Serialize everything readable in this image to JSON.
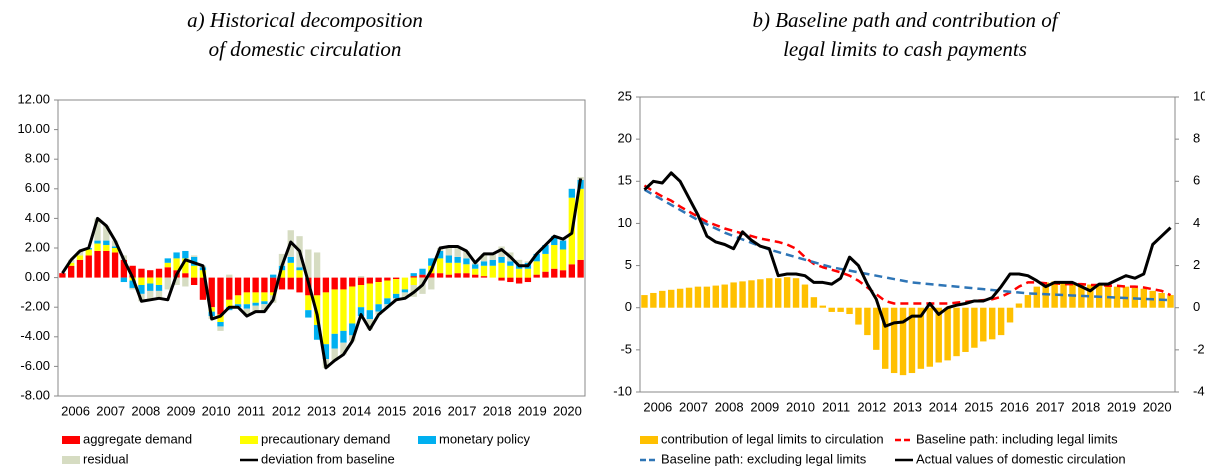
{
  "chart_data": [
    {
      "type": "bar",
      "stacked": true,
      "title": [
        "a)    Historical decomposition",
        "of domestic circulation"
      ],
      "categories": [
        "2006",
        null,
        null,
        null,
        "2007",
        null,
        null,
        null,
        "2008",
        null,
        null,
        null,
        "2009",
        null,
        null,
        null,
        "2010",
        null,
        null,
        null,
        "2011",
        null,
        null,
        null,
        "2012",
        null,
        null,
        null,
        "2013",
        null,
        null,
        null,
        "2014",
        null,
        null,
        null,
        "2015",
        null,
        null,
        null,
        "2016",
        null,
        null,
        null,
        "2017",
        null,
        null,
        null,
        "2018",
        null,
        null,
        null,
        "2019",
        null,
        null,
        null,
        "2020",
        null,
        null,
        null
      ],
      "ylim": [
        -8,
        12
      ],
      "yticks": [
        {
          "value": -8,
          "label": "-8.00"
        },
        {
          "value": -6,
          "label": "-6.00"
        },
        {
          "value": -4,
          "label": "-4.00"
        },
        {
          "value": -2,
          "label": "-2.00"
        },
        {
          "value": 0,
          "label": "0.00"
        },
        {
          "value": 2,
          "label": "2.00"
        },
        {
          "value": 4,
          "label": "4.00"
        },
        {
          "value": 6,
          "label": "6.00"
        },
        {
          "value": 8,
          "label": "8.00"
        },
        {
          "value": 10,
          "label": "10.00"
        },
        {
          "value": 12,
          "label": "12.00"
        }
      ],
      "series": [
        {
          "name": "aggregate demand",
          "color": "#ff0000",
          "values": [
            0.3,
            0.8,
            1.2,
            1.5,
            1.8,
            1.8,
            1.7,
            1.2,
            0.8,
            0.6,
            0.5,
            0.6,
            0.7,
            0.5,
            0.3,
            -0.5,
            -1.5,
            -2.0,
            -2.5,
            -1.5,
            -1.2,
            -1.0,
            -1.0,
            -1.0,
            -1.0,
            -0.8,
            -0.8,
            -1.0,
            -1.2,
            -1.2,
            -1.0,
            -0.8,
            -0.8,
            -0.6,
            -0.5,
            -0.4,
            -0.3,
            -0.2,
            -0.1,
            0.0,
            0.1,
            0.2,
            0.3,
            0.3,
            0.2,
            0.3,
            0.3,
            0.2,
            0.1,
            0.0,
            -0.2,
            -0.3,
            -0.4,
            -0.3,
            0.2,
            0.4,
            0.6,
            0.5,
            0.9,
            1.2
          ]
        },
        {
          "name": "precautionary demand",
          "color": "#ffff00",
          "values": [
            0,
            0.2,
            0.3,
            0.4,
            0.5,
            0.4,
            0.3,
            0,
            -0.2,
            -0.5,
            -0.4,
            -0.5,
            0.3,
            0.8,
            1.0,
            0.8,
            0.5,
            -0.3,
            -0.5,
            -0.5,
            -0.6,
            -0.8,
            -0.7,
            -0.6,
            -0.2,
            0.5,
            1.0,
            0.5,
            -1.0,
            -2.0,
            -3.5,
            -3.0,
            -2.8,
            -2.5,
            -1.5,
            -1.8,
            -1.5,
            -1.2,
            -1.0,
            -0.8,
            -0.5,
            0,
            0.5,
            1.0,
            0.8,
            0.7,
            0.6,
            0.4,
            0.7,
            0.8,
            1.0,
            0.8,
            0.6,
            0.6,
            0.9,
            1.2,
            1.6,
            1.4,
            4.5,
            4.8
          ]
        },
        {
          "name": "monetary policy",
          "color": "#00b0f0",
          "values": [
            0,
            0,
            0,
            0.1,
            0.2,
            0.3,
            0.1,
            -0.3,
            -0.5,
            -0.6,
            -0.5,
            -0.4,
            0.3,
            0.4,
            0.5,
            0.6,
            0.2,
            -0.3,
            -0.3,
            -0.2,
            -0.2,
            -0.3,
            -0.2,
            -0.2,
            0.2,
            0.3,
            0.4,
            0.2,
            -0.5,
            -1.0,
            -1.0,
            -1.0,
            -0.8,
            -0.8,
            -0.6,
            -0.6,
            -0.5,
            -0.4,
            -0.3,
            -0.2,
            0.2,
            0.4,
            0.5,
            0.5,
            0.5,
            0.4,
            0.4,
            0.3,
            0.3,
            0.4,
            0.4,
            0.3,
            0.3,
            0.4,
            0.5,
            0.6,
            0.6,
            0.6,
            0.6,
            0.6
          ]
        },
        {
          "name": "residual",
          "color": "#d6dcc2",
          "values": [
            0,
            0.2,
            0.3,
            0,
            1.5,
            1.0,
            0.4,
            0.3,
            -0.1,
            -0.5,
            -0.6,
            -0.5,
            -0.8,
            -0.5,
            -0.6,
            0.1,
            0.1,
            -0.2,
            -0.3,
            0.2,
            0,
            -0.5,
            -0.4,
            -0.5,
            -0.5,
            0.8,
            1.8,
            2.1,
            1.9,
            1.7,
            -0.6,
            -0.8,
            -0.8,
            -0.4,
            0.1,
            -0.7,
            -0.2,
            -0.2,
            -0.1,
            -0.4,
            -0.8,
            -1.1,
            -0.8,
            0.2,
            0.6,
            0.7,
            0.5,
            0.1,
            0.5,
            0.4,
            0.7,
            0.6,
            0.3,
            0.1,
            0,
            0,
            0,
            0.1,
            0,
            0.2
          ]
        },
        {
          "name": "deviation from baseline",
          "type": "line",
          "color": "#000000",
          "values": [
            0.3,
            1.2,
            1.8,
            2.0,
            4.0,
            3.5,
            2.5,
            1.2,
            0.0,
            -1.6,
            -1.5,
            -1.4,
            -1.5,
            0.2,
            1.2,
            1.0,
            0.8,
            -2.8,
            -2.6,
            -2.0,
            -2.0,
            -2.6,
            -2.3,
            -2.3,
            -1.5,
            0.8,
            2.4,
            1.8,
            -0.3,
            -2.5,
            -6.1,
            -5.6,
            -5.2,
            -4.3,
            -2.5,
            -3.5,
            -2.5,
            -2.0,
            -1.5,
            -1.4,
            -1.0,
            -0.5,
            0.5,
            2.0,
            2.1,
            2.1,
            1.8,
            1.0,
            1.6,
            1.6,
            1.9,
            1.4,
            0.8,
            0.8,
            1.6,
            2.2,
            2.8,
            2.6,
            3.0,
            6.7
          ]
        }
      ]
    },
    {
      "type": "bar",
      "title": [
        "b) Baseline path and contribution of",
        "legal limits to cash payments"
      ],
      "categories": [
        "2006",
        null,
        null,
        null,
        "2007",
        null,
        null,
        null,
        "2008",
        null,
        null,
        null,
        "2009",
        null,
        null,
        null,
        "2010",
        null,
        null,
        null,
        "2011",
        null,
        null,
        null,
        "2012",
        null,
        null,
        null,
        "2013",
        null,
        null,
        null,
        "2014",
        null,
        null,
        null,
        "2015",
        null,
        null,
        null,
        "2016",
        null,
        null,
        null,
        "2017",
        null,
        null,
        null,
        "2018",
        null,
        null,
        null,
        "2019",
        null,
        null,
        null,
        "2020",
        null,
        null,
        null
      ],
      "ylim": [
        -10,
        25
      ],
      "yticks": [
        -10,
        -5,
        0,
        5,
        10,
        15,
        20,
        25
      ],
      "y2lim": [
        -4,
        10
      ],
      "y2ticks": [
        -4,
        -2,
        0,
        2,
        4,
        6,
        8,
        10
      ],
      "series": [
        {
          "name": "contribution of legal limits to circulation",
          "color": "#ffc000",
          "axis": "y2",
          "values": [
            0.6,
            0.7,
            0.8,
            0.85,
            0.9,
            0.95,
            1.0,
            1.0,
            1.05,
            1.1,
            1.2,
            1.25,
            1.3,
            1.35,
            1.4,
            1.4,
            1.45,
            1.4,
            1.1,
            0.5,
            0.1,
            -0.2,
            -0.2,
            -0.3,
            -0.8,
            -1.3,
            -2.0,
            -2.9,
            -3.1,
            -3.2,
            -3.1,
            -2.9,
            -2.8,
            -2.6,
            -2.5,
            -2.3,
            -2.1,
            -1.9,
            -1.6,
            -1.5,
            -1.3,
            -0.7,
            0.2,
            0.6,
            1.0,
            1.2,
            1.25,
            1.2,
            1.2,
            1.15,
            1.1,
            1.1,
            1.05,
            1.0,
            1.0,
            0.95,
            0.9,
            0.8,
            0.7,
            0.6
          ]
        },
        {
          "name": "Baseline path: including legal limits",
          "type": "line",
          "dash": true,
          "color": "#ff0000",
          "values": [
            14.5,
            13.8,
            13.2,
            12.7,
            12.0,
            11.4,
            10.8,
            10.2,
            9.8,
            9.4,
            9.1,
            8.8,
            8.5,
            8.2,
            8.0,
            7.8,
            7.5,
            7.0,
            6.0,
            5.2,
            4.8,
            4.5,
            4.2,
            3.8,
            3.2,
            2.4,
            1.6,
            0.8,
            0.5,
            0.5,
            0.5,
            0.5,
            0.5,
            0.5,
            0.5,
            0.6,
            0.7,
            0.8,
            0.9,
            1.0,
            1.3,
            1.8,
            2.5,
            3.0,
            3.0,
            2.9,
            2.9,
            2.8,
            2.8,
            2.8,
            2.7,
            2.7,
            2.6,
            2.6,
            2.5,
            2.5,
            2.4,
            2.2,
            2.0,
            1.5
          ]
        },
        {
          "name": "Baseline path: excluding legal limits",
          "type": "line",
          "dash": true,
          "color": "#2e75b6",
          "values": [
            14.0,
            13.4,
            12.8,
            12.2,
            11.6,
            11.0,
            10.4,
            9.9,
            9.4,
            8.9,
            8.5,
            8.1,
            7.7,
            7.3,
            6.9,
            6.6,
            6.3,
            6.0,
            5.7,
            5.4,
            5.1,
            4.8,
            4.6,
            4.4,
            4.2,
            4.0,
            3.8,
            3.6,
            3.4,
            3.2,
            3.0,
            2.9,
            2.8,
            2.7,
            2.6,
            2.5,
            2.4,
            2.3,
            2.2,
            2.1,
            2.0,
            1.9,
            1.8,
            1.7,
            1.65,
            1.6,
            1.55,
            1.5,
            1.45,
            1.4,
            1.35,
            1.3,
            1.25,
            1.2,
            1.15,
            1.1,
            1.05,
            1.0,
            0.95,
            0.9
          ]
        },
        {
          "name": "Actual values of domestic circulation",
          "type": "line",
          "color": "#000000",
          "values": [
            14.0,
            15.0,
            14.8,
            16.0,
            15.0,
            13.0,
            11.0,
            8.5,
            7.8,
            7.5,
            7.0,
            9.0,
            8.0,
            7.3,
            7.0,
            3.8,
            4.0,
            4.0,
            3.8,
            3.0,
            3.0,
            2.8,
            3.5,
            6.0,
            5.0,
            2.8,
            1.0,
            -2.2,
            -1.8,
            -1.7,
            -1.0,
            -1.0,
            0.5,
            -0.8,
            0,
            0.3,
            0.5,
            0.8,
            0.8,
            1.2,
            2.5,
            4.0,
            4.0,
            3.8,
            3.2,
            2.5,
            3.0,
            3.0,
            3.0,
            2.5,
            2.0,
            2.8,
            2.8,
            3.3,
            3.8,
            3.5,
            4.0,
            7.5,
            8.5,
            9.5
          ]
        }
      ]
    }
  ]
}
